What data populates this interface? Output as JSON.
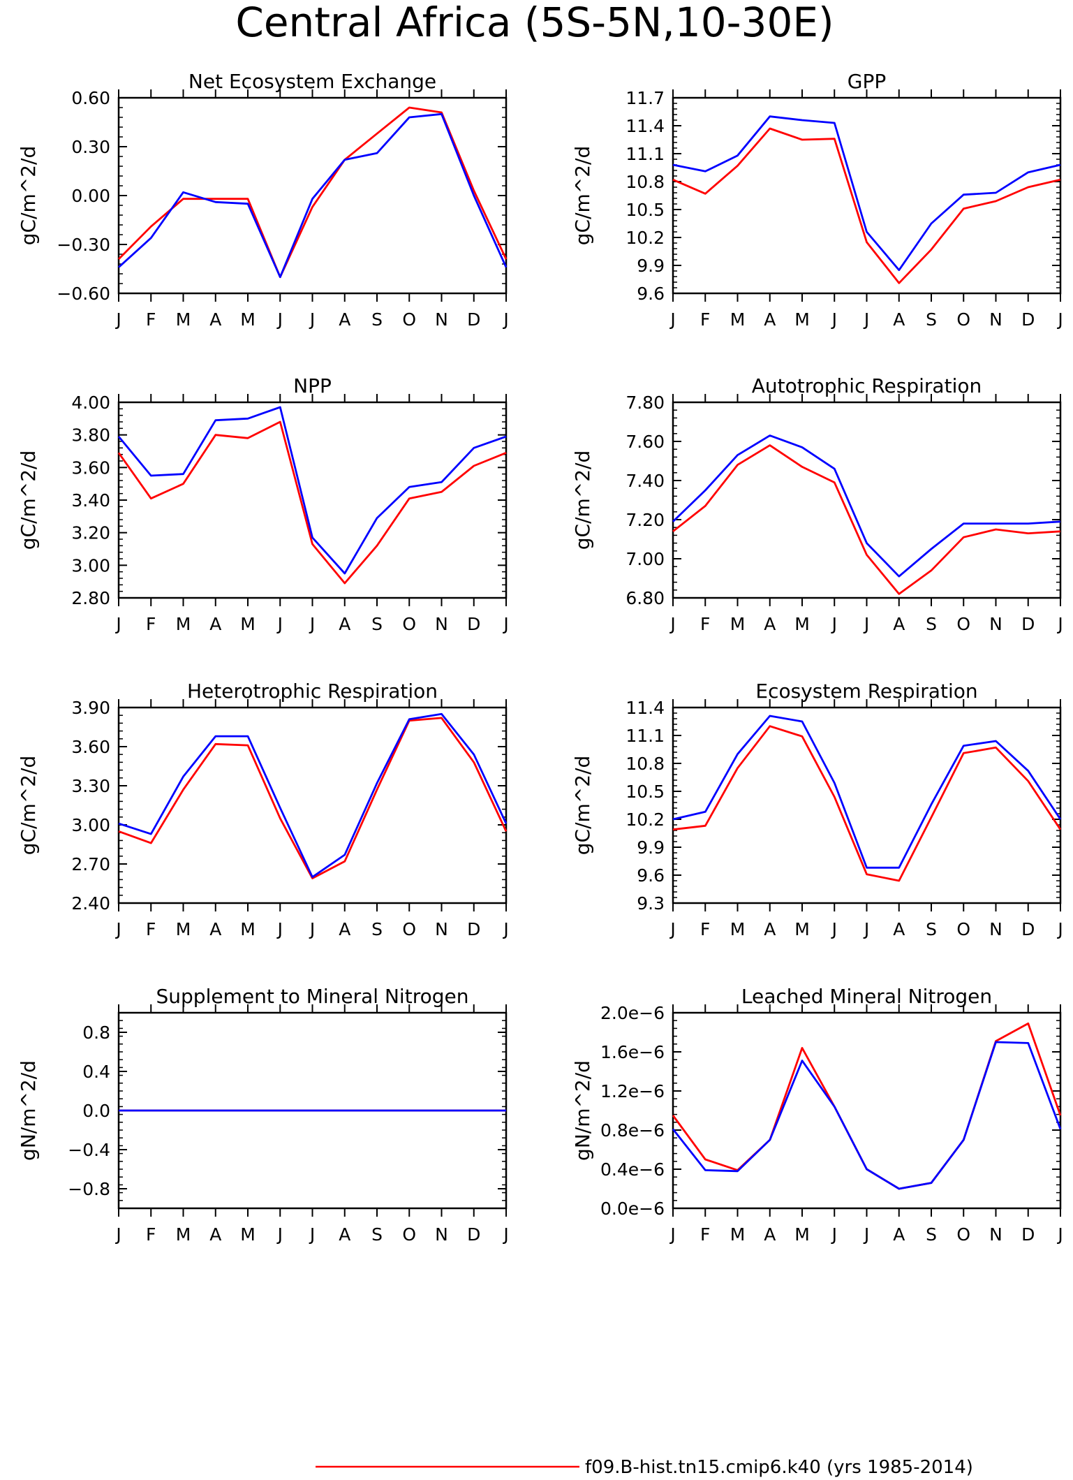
{
  "figure_title": "Central Africa (5S-5N,10-30E)",
  "legend": [
    {
      "label": "f09.B-hist.tn15.cmip6.k40 (yrs 1985-2014)",
      "color": "#ff0000"
    }
  ],
  "colors": {
    "series_red": "#ff0000",
    "series_blue": "#0000ff"
  },
  "chart_data": [
    {
      "type": "line",
      "title": "Net Ecosystem Exchange",
      "ylabel": "gC/m^2/d",
      "categories": [
        "J",
        "F",
        "M",
        "A",
        "M",
        "J",
        "J",
        "A",
        "S",
        "O",
        "N",
        "D",
        "J"
      ],
      "ylim": [
        -0.6,
        0.6
      ],
      "yticks": [
        -0.6,
        -0.3,
        0.0,
        0.3,
        0.6
      ],
      "ytick_labels": [
        "−0.60",
        "−0.30",
        "0.00",
        "0.30",
        "0.60"
      ],
      "series": [
        {
          "color": "#ff0000",
          "values": [
            -0.39,
            -0.19,
            -0.02,
            -0.02,
            -0.02,
            -0.5,
            -0.07,
            0.22,
            0.38,
            0.54,
            0.51,
            0.03,
            -0.39
          ]
        },
        {
          "color": "#0000ff",
          "values": [
            -0.44,
            -0.26,
            0.02,
            -0.04,
            -0.05,
            -0.5,
            -0.02,
            0.22,
            0.26,
            0.48,
            0.5,
            0.0,
            -0.44
          ]
        }
      ]
    },
    {
      "type": "line",
      "title": "GPP",
      "ylabel": "gC/m^2/d",
      "categories": [
        "J",
        "F",
        "M",
        "A",
        "M",
        "J",
        "J",
        "A",
        "S",
        "O",
        "N",
        "D",
        "J"
      ],
      "ylim": [
        9.6,
        11.7
      ],
      "yticks": [
        9.6,
        9.9,
        10.2,
        10.5,
        10.8,
        11.1,
        11.4,
        11.7
      ],
      "ytick_labels": [
        "9.6",
        "9.9",
        "10.2",
        "10.5",
        "10.8",
        "11.1",
        "11.4",
        "11.7"
      ],
      "series": [
        {
          "color": "#ff0000",
          "values": [
            10.82,
            10.67,
            10.97,
            11.37,
            11.25,
            11.26,
            10.15,
            9.71,
            10.07,
            10.51,
            10.59,
            10.74,
            10.82
          ]
        },
        {
          "color": "#0000ff",
          "values": [
            10.98,
            10.91,
            11.08,
            11.5,
            11.46,
            11.43,
            10.26,
            9.85,
            10.35,
            10.66,
            10.68,
            10.9,
            10.98
          ]
        }
      ]
    },
    {
      "type": "line",
      "title": "NPP",
      "ylabel": "gC/m^2/d",
      "categories": [
        "J",
        "F",
        "M",
        "A",
        "M",
        "J",
        "J",
        "A",
        "S",
        "O",
        "N",
        "D",
        "J"
      ],
      "ylim": [
        2.8,
        4.0
      ],
      "yticks": [
        2.8,
        3.0,
        3.2,
        3.4,
        3.6,
        3.8,
        4.0
      ],
      "ytick_labels": [
        "2.80",
        "3.00",
        "3.20",
        "3.40",
        "3.60",
        "3.80",
        "4.00"
      ],
      "series": [
        {
          "color": "#ff0000",
          "values": [
            3.69,
            3.41,
            3.5,
            3.8,
            3.78,
            3.88,
            3.13,
            2.89,
            3.12,
            3.41,
            3.45,
            3.61,
            3.69
          ]
        },
        {
          "color": "#0000ff",
          "values": [
            3.79,
            3.55,
            3.56,
            3.89,
            3.9,
            3.97,
            3.17,
            2.95,
            3.29,
            3.48,
            3.51,
            3.72,
            3.79
          ]
        }
      ]
    },
    {
      "type": "line",
      "title": "Autotrophic Respiration",
      "ylabel": "gC/m^2/d",
      "categories": [
        "J",
        "F",
        "M",
        "A",
        "M",
        "J",
        "J",
        "A",
        "S",
        "O",
        "N",
        "D",
        "J"
      ],
      "ylim": [
        6.8,
        7.8
      ],
      "yticks": [
        6.8,
        7.0,
        7.2,
        7.4,
        7.6,
        7.8
      ],
      "ytick_labels": [
        "6.80",
        "7.00",
        "7.20",
        "7.40",
        "7.60",
        "7.80"
      ],
      "series": [
        {
          "color": "#ff0000",
          "values": [
            7.14,
            7.27,
            7.48,
            7.58,
            7.47,
            7.39,
            7.02,
            6.82,
            6.94,
            7.11,
            7.15,
            7.13,
            7.14
          ]
        },
        {
          "color": "#0000ff",
          "values": [
            7.19,
            7.35,
            7.53,
            7.63,
            7.57,
            7.46,
            7.08,
            6.91,
            7.05,
            7.18,
            7.18,
            7.18,
            7.19
          ]
        }
      ]
    },
    {
      "type": "line",
      "title": "Heterotrophic Respiration",
      "ylabel": "gC/m^2/d",
      "categories": [
        "J",
        "F",
        "M",
        "A",
        "M",
        "J",
        "J",
        "A",
        "S",
        "O",
        "N",
        "D",
        "J"
      ],
      "ylim": [
        2.4,
        3.9
      ],
      "yticks": [
        2.4,
        2.7,
        3.0,
        3.3,
        3.6,
        3.9
      ],
      "ytick_labels": [
        "2.40",
        "2.70",
        "3.00",
        "3.30",
        "3.60",
        "3.90"
      ],
      "series": [
        {
          "color": "#ff0000",
          "values": [
            2.95,
            2.86,
            3.27,
            3.62,
            3.61,
            3.05,
            2.59,
            2.72,
            3.27,
            3.8,
            3.82,
            3.48,
            2.95
          ]
        },
        {
          "color": "#0000ff",
          "values": [
            3.01,
            2.93,
            3.37,
            3.68,
            3.68,
            3.13,
            2.6,
            2.77,
            3.32,
            3.81,
            3.85,
            3.54,
            3.01
          ]
        }
      ]
    },
    {
      "type": "line",
      "title": "Ecosystem Respiration",
      "ylabel": "gC/m^2/d",
      "categories": [
        "J",
        "F",
        "M",
        "A",
        "M",
        "J",
        "J",
        "A",
        "S",
        "O",
        "N",
        "D",
        "J"
      ],
      "ylim": [
        9.3,
        11.4
      ],
      "yticks": [
        9.3,
        9.6,
        9.9,
        10.2,
        10.5,
        10.8,
        11.1,
        11.4
      ],
      "ytick_labels": [
        "9.3",
        "9.6",
        "9.9",
        "10.2",
        "10.5",
        "10.8",
        "11.1",
        "11.4"
      ],
      "series": [
        {
          "color": "#ff0000",
          "values": [
            10.09,
            10.13,
            10.75,
            11.2,
            11.09,
            10.44,
            9.61,
            9.54,
            10.22,
            10.91,
            10.97,
            10.61,
            10.09
          ]
        },
        {
          "color": "#0000ff",
          "values": [
            10.2,
            10.28,
            10.9,
            11.31,
            11.25,
            10.59,
            9.68,
            9.68,
            10.36,
            10.99,
            11.04,
            10.72,
            10.2
          ]
        }
      ]
    },
    {
      "type": "line",
      "title": "Supplement to Mineral Nitrogen",
      "ylabel": "gN/m^2/d",
      "categories": [
        "J",
        "F",
        "M",
        "A",
        "M",
        "J",
        "J",
        "A",
        "S",
        "O",
        "N",
        "D",
        "J"
      ],
      "ylim": [
        -1.0,
        1.0
      ],
      "yticks": [
        -0.8,
        -0.4,
        0.0,
        0.4,
        0.8
      ],
      "ytick_labels": [
        "−0.8",
        "−0.4",
        "0.0",
        "0.4",
        "0.8"
      ],
      "series": [
        {
          "color": "#ff0000",
          "values": [
            0,
            0,
            0,
            0,
            0,
            0,
            0,
            0,
            0,
            0,
            0,
            0,
            0
          ]
        },
        {
          "color": "#0000ff",
          "values": [
            0,
            0,
            0,
            0,
            0,
            0,
            0,
            0,
            0,
            0,
            0,
            0,
            0
          ]
        }
      ]
    },
    {
      "type": "line",
      "title": "Leached Mineral Nitrogen",
      "ylabel": "gN/m^2/d",
      "categories": [
        "J",
        "F",
        "M",
        "A",
        "M",
        "J",
        "J",
        "A",
        "S",
        "O",
        "N",
        "D",
        "J"
      ],
      "ylim": [
        0.0,
        2e-06
      ],
      "yticks": [
        0.0,
        4e-07,
        8e-07,
        1.2e-06,
        1.6e-06,
        2e-06
      ],
      "ytick_labels": [
        "0.0e−6",
        "0.4e−6",
        "0.8e−6",
        "1.2e−6",
        "1.6e−6",
        "2.0e−6"
      ],
      "series": [
        {
          "color": "#ff0000",
          "values": [
            9.5e-07,
            5e-07,
            3.9e-07,
            7e-07,
            1.64e-06,
            1.04e-06,
            4e-07,
            2e-07,
            2.6e-07,
            7e-07,
            1.71e-06,
            1.89e-06,
            9.5e-07
          ]
        },
        {
          "color": "#0000ff",
          "values": [
            8.1e-07,
            3.9e-07,
            3.8e-07,
            7e-07,
            1.51e-06,
            1.04e-06,
            4e-07,
            2e-07,
            2.6e-07,
            7e-07,
            1.7e-06,
            1.69e-06,
            8.1e-07
          ]
        }
      ]
    }
  ]
}
